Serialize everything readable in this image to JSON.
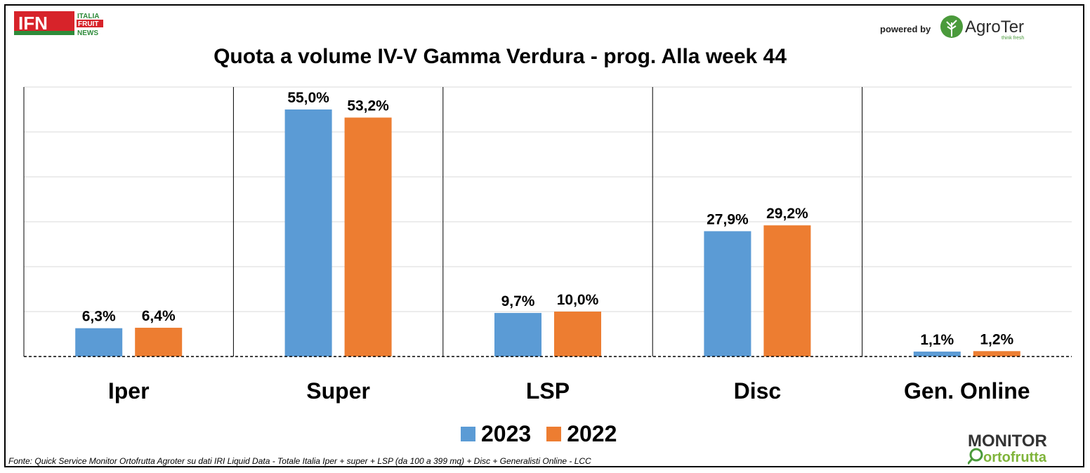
{
  "header": {
    "ifn_logo_text": "IFN",
    "ifn_logo_sub": [
      "ITALIA",
      "FRUIT",
      "NEWS"
    ],
    "powered_by": "powered by",
    "agroter_logo_text": "AgroTer",
    "agroter_tagline": "think fresh"
  },
  "chart_data": {
    "type": "bar",
    "title": "Quota a volume IV-V Gamma Verdura - prog. Alla week 44",
    "categories": [
      "Iper",
      "Super",
      "LSP",
      "Disc",
      "Gen. Online"
    ],
    "series": [
      {
        "name": "2023",
        "values": [
          6.3,
          55.0,
          9.7,
          27.9,
          1.1
        ],
        "labels": [
          "6,3%",
          "55,0%",
          "9,7%",
          "27,9%",
          "1,1%"
        ],
        "color": "#5B9BD5"
      },
      {
        "name": "2022",
        "values": [
          6.4,
          53.2,
          10.0,
          29.2,
          1.2
        ],
        "labels": [
          "6,4%",
          "53,2%",
          "10,0%",
          "29,2%",
          "1,2%"
        ],
        "color": "#ED7D31"
      }
    ],
    "xlabel": "",
    "ylabel": "",
    "ylim": [
      0,
      60
    ],
    "gridlines": [
      10,
      20,
      30,
      40,
      50,
      60
    ],
    "grid": true,
    "legend_position": "bottom"
  },
  "footer": {
    "source": "Fonte: Quick Service Monitor Ortofrutta Agroter su dati IRI Liquid Data - Totale Italia Iper + super + LSP (da 100 a 399 mq) + Disc + Generalisti Online - LCC",
    "monitor_logo_line1": "MONITOR",
    "monitor_logo_line2": "ortofrutta"
  },
  "colors": {
    "series_2023": "#5B9BD5",
    "series_2022": "#ED7D31",
    "ifn_red": "#D7232A",
    "ifn_green": "#2E8B3A",
    "agroter_green": "#4A9A3B"
  }
}
